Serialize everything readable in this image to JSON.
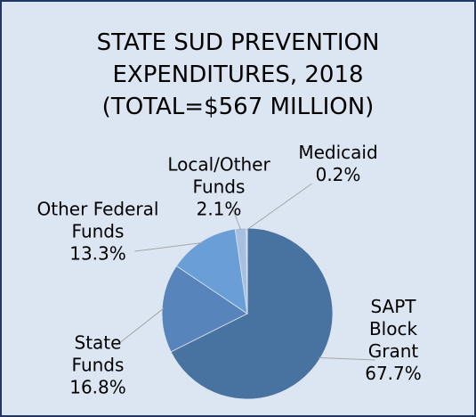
{
  "chart_data": {
    "type": "pie",
    "title": "STATE SUD PREVENTION EXPENDITURES, 2018 (TOTAL=$567 MILLION)",
    "categories": [
      "SAPT Block Grant",
      "State Funds",
      "Other Federal Funds",
      "Local/Other Funds",
      "Medicaid"
    ],
    "values": [
      67.7,
      16.8,
      13.3,
      2.1,
      0.2
    ],
    "value_labels": [
      "67.7%",
      "16.8%",
      "13.3%",
      "2.1%",
      "0.2%"
    ],
    "colors": [
      "#48729f",
      "#5785bb",
      "#6a9ed6",
      "#a7bfe0",
      "#c9d8ee"
    ]
  }
}
